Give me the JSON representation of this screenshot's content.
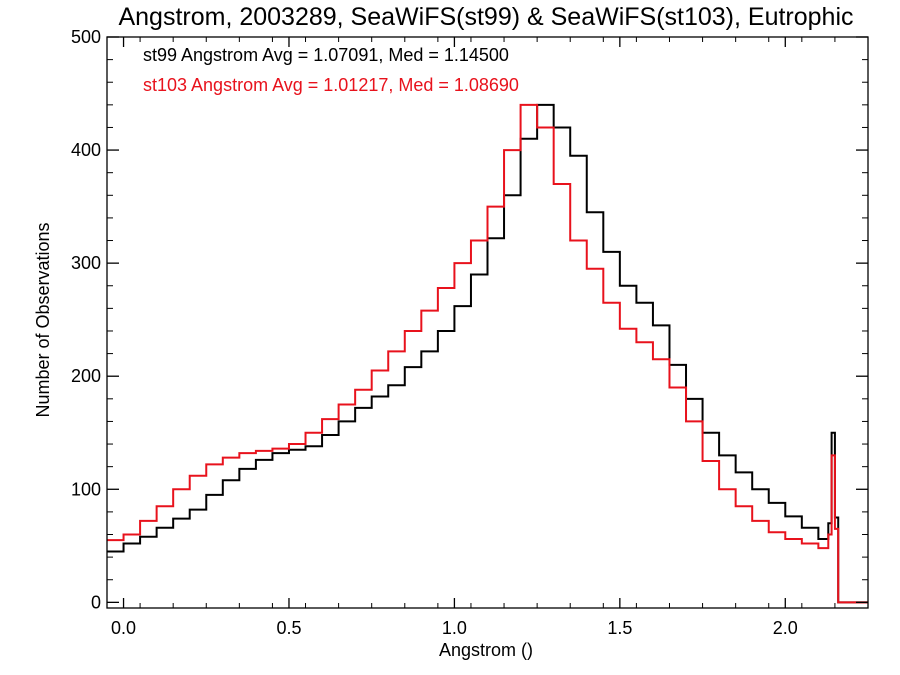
{
  "chart_data": {
    "type": "line",
    "step": true,
    "title": "Angstrom, 2003289, SeaWiFS(st99) & SeaWiFS(st103), Eutrophic",
    "xlabel": "Angstrom ()",
    "ylabel": "Number of Observations",
    "xlim": [
      -0.05,
      2.25
    ],
    "ylim": [
      -5,
      500
    ],
    "xticks": [
      0.0,
      0.5,
      1.0,
      1.5,
      2.0
    ],
    "xtick_labels": [
      "0.0",
      "0.5",
      "1.0",
      "1.5",
      "2.0"
    ],
    "yticks": [
      0,
      100,
      200,
      300,
      400,
      500
    ],
    "ytick_labels": [
      "0",
      "100",
      "200",
      "300",
      "400",
      "500"
    ],
    "annotations": [
      {
        "text": "st99 Angstrom Avg = 1.07091, Med = 1.14500",
        "color": "#000000"
      },
      {
        "text": "st103 Angstrom Avg = 1.01217, Med = 1.08690",
        "color": "#e8121c"
      }
    ],
    "series": [
      {
        "color": "#000000",
        "points": [
          [
            -0.05,
            45
          ],
          [
            0.0,
            52
          ],
          [
            0.05,
            58
          ],
          [
            0.1,
            66
          ],
          [
            0.15,
            74
          ],
          [
            0.2,
            82
          ],
          [
            0.25,
            95
          ],
          [
            0.3,
            108
          ],
          [
            0.35,
            118
          ],
          [
            0.4,
            126
          ],
          [
            0.45,
            132
          ],
          [
            0.5,
            135
          ],
          [
            0.55,
            138
          ],
          [
            0.6,
            148
          ],
          [
            0.65,
            160
          ],
          [
            0.7,
            172
          ],
          [
            0.75,
            182
          ],
          [
            0.8,
            192
          ],
          [
            0.85,
            208
          ],
          [
            0.9,
            222
          ],
          [
            0.95,
            240
          ],
          [
            1.0,
            262
          ],
          [
            1.05,
            290
          ],
          [
            1.1,
            322
          ],
          [
            1.15,
            360
          ],
          [
            1.2,
            410
          ],
          [
            1.25,
            440
          ],
          [
            1.3,
            420
          ],
          [
            1.35,
            395
          ],
          [
            1.4,
            345
          ],
          [
            1.45,
            310
          ],
          [
            1.5,
            280
          ],
          [
            1.55,
            265
          ],
          [
            1.6,
            245
          ],
          [
            1.65,
            210
          ],
          [
            1.7,
            180
          ],
          [
            1.75,
            150
          ],
          [
            1.8,
            130
          ],
          [
            1.85,
            115
          ],
          [
            1.9,
            100
          ],
          [
            1.95,
            88
          ],
          [
            2.0,
            76
          ],
          [
            2.05,
            66
          ],
          [
            2.1,
            56
          ],
          [
            2.13,
            70
          ],
          [
            2.14,
            150
          ],
          [
            2.15,
            75
          ],
          [
            2.16,
            0
          ],
          [
            2.25,
            0
          ]
        ]
      },
      {
        "color": "#e8121c",
        "points": [
          [
            -0.05,
            55
          ],
          [
            0.0,
            60
          ],
          [
            0.05,
            72
          ],
          [
            0.1,
            85
          ],
          [
            0.15,
            100
          ],
          [
            0.2,
            112
          ],
          [
            0.25,
            122
          ],
          [
            0.3,
            128
          ],
          [
            0.35,
            132
          ],
          [
            0.4,
            134
          ],
          [
            0.45,
            136
          ],
          [
            0.5,
            140
          ],
          [
            0.55,
            150
          ],
          [
            0.6,
            162
          ],
          [
            0.65,
            175
          ],
          [
            0.7,
            188
          ],
          [
            0.75,
            205
          ],
          [
            0.8,
            222
          ],
          [
            0.85,
            240
          ],
          [
            0.9,
            258
          ],
          [
            0.95,
            278
          ],
          [
            1.0,
            300
          ],
          [
            1.05,
            320
          ],
          [
            1.1,
            350
          ],
          [
            1.15,
            400
          ],
          [
            1.2,
            440
          ],
          [
            1.25,
            420
          ],
          [
            1.3,
            370
          ],
          [
            1.35,
            320
          ],
          [
            1.4,
            295
          ],
          [
            1.45,
            265
          ],
          [
            1.5,
            242
          ],
          [
            1.55,
            230
          ],
          [
            1.6,
            215
          ],
          [
            1.65,
            190
          ],
          [
            1.7,
            160
          ],
          [
            1.75,
            125
          ],
          [
            1.8,
            100
          ],
          [
            1.85,
            85
          ],
          [
            1.9,
            72
          ],
          [
            1.95,
            62
          ],
          [
            2.0,
            56
          ],
          [
            2.05,
            52
          ],
          [
            2.1,
            48
          ],
          [
            2.13,
            60
          ],
          [
            2.14,
            130
          ],
          [
            2.15,
            65
          ],
          [
            2.16,
            0
          ],
          [
            2.25,
            0
          ]
        ]
      }
    ]
  }
}
